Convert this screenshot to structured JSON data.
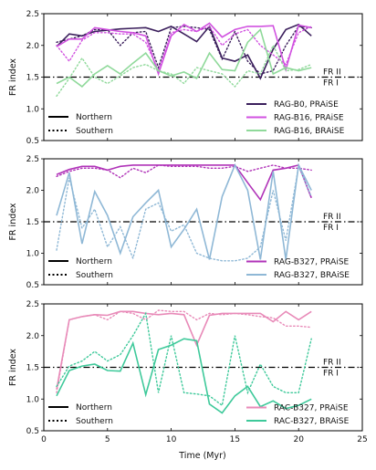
{
  "figure": {
    "xlabel": "Time (Myr)",
    "ylabel": "FR index",
    "fr_upper_label": "FR II",
    "fr_lower_label": "FR I",
    "style_legend": {
      "solid": "Northern",
      "dotted": "Southern"
    }
  },
  "chart_data": [
    {
      "type": "line",
      "xlim": [
        0,
        25
      ],
      "ylim": [
        0.5,
        2.5
      ],
      "xticks": [
        0,
        5,
        10,
        15,
        20,
        25
      ],
      "yticks": [
        0.5,
        1.0,
        1.5,
        2.0,
        2.5
      ],
      "threshold": 1.5,
      "show_style_legend": true,
      "series": [
        {
          "name": "RAG-B0, PRAiSE",
          "color": "#3b1f5c",
          "x": [
            1,
            2,
            3,
            4,
            5,
            6,
            7,
            8,
            9,
            10,
            11,
            12,
            13,
            14,
            15,
            16,
            17,
            18,
            19,
            20,
            21
          ],
          "north": [
            1.98,
            2.18,
            2.15,
            2.22,
            2.24,
            2.26,
            2.27,
            2.28,
            2.22,
            2.3,
            2.18,
            2.06,
            2.3,
            1.8,
            1.75,
            1.85,
            1.48,
            1.94,
            2.25,
            2.33,
            2.15
          ],
          "south": [
            2.05,
            2.1,
            2.15,
            2.25,
            2.25,
            2.0,
            2.2,
            2.22,
            1.65,
            2.28,
            2.3,
            2.28,
            2.25,
            1.78,
            2.22,
            1.75,
            1.55,
            1.6,
            2.0,
            2.3,
            2.28
          ]
        },
        {
          "name": "RAG-B16, PRAiSE",
          "color": "#d152e0",
          "x": [
            1,
            2,
            3,
            4,
            5,
            6,
            7,
            8,
            9,
            10,
            11,
            12,
            13,
            14,
            15,
            16,
            17,
            18,
            19,
            20,
            21
          ],
          "north": [
            1.98,
            2.1,
            2.1,
            2.28,
            2.25,
            2.22,
            2.2,
            2.15,
            1.55,
            2.15,
            2.33,
            2.22,
            2.35,
            2.13,
            2.25,
            2.3,
            2.3,
            2.31,
            1.62,
            2.32,
            2.28
          ],
          "south": [
            2.0,
            1.75,
            2.08,
            2.2,
            2.2,
            2.18,
            2.18,
            2.05,
            1.6,
            2.2,
            2.25,
            2.22,
            2.3,
            2.0,
            2.18,
            2.25,
            2.0,
            1.85,
            1.7,
            2.2,
            2.3
          ]
        },
        {
          "name": "RAG-B16, BRAiSE",
          "color": "#8fd99a",
          "x": [
            1,
            2,
            3,
            4,
            5,
            6,
            7,
            8,
            9,
            10,
            11,
            12,
            13,
            14,
            15,
            16,
            17,
            18,
            19,
            20,
            21
          ],
          "north": [
            1.4,
            1.5,
            1.35,
            1.55,
            1.68,
            1.55,
            1.72,
            1.88,
            1.6,
            1.52,
            1.58,
            1.48,
            1.88,
            1.62,
            1.6,
            2.05,
            2.25,
            1.55,
            1.65,
            1.6,
            1.65
          ],
          "south": [
            1.2,
            1.48,
            1.8,
            1.5,
            1.4,
            1.52,
            1.65,
            1.7,
            1.6,
            1.55,
            1.4,
            1.65,
            1.6,
            1.55,
            1.35,
            1.6,
            1.55,
            2.0,
            1.6,
            1.62,
            1.7
          ]
        }
      ]
    },
    {
      "type": "line",
      "xlim": [
        0,
        25
      ],
      "ylim": [
        0.5,
        2.5
      ],
      "xticks": [
        0,
        5,
        10,
        15,
        20,
        25
      ],
      "yticks": [
        0.5,
        1.0,
        1.5,
        2.0,
        2.5
      ],
      "threshold": 1.5,
      "show_style_legend": true,
      "series": [
        {
          "name": "RAG-B327, PRAiSE",
          "color": "#b033b8",
          "x": [
            1,
            2,
            3,
            4,
            5,
            6,
            7,
            8,
            9,
            10,
            11,
            12,
            13,
            14,
            15,
            16,
            17,
            18,
            19,
            20,
            21
          ],
          "north": [
            2.25,
            2.33,
            2.38,
            2.38,
            2.32,
            2.38,
            2.4,
            2.4,
            2.4,
            2.4,
            2.4,
            2.4,
            2.4,
            2.4,
            2.4,
            2.12,
            1.85,
            2.32,
            2.35,
            2.4,
            1.88
          ],
          "south": [
            2.22,
            2.3,
            2.35,
            2.35,
            2.32,
            2.2,
            2.35,
            2.28,
            2.4,
            2.38,
            2.38,
            2.38,
            2.35,
            2.35,
            2.38,
            2.3,
            2.35,
            2.4,
            2.35,
            2.35,
            2.32
          ]
        },
        {
          "name": "RAG-B327, BRAiSE",
          "color": "#8fb8d6",
          "x": [
            1,
            2,
            3,
            4,
            5,
            6,
            7,
            8,
            9,
            10,
            11,
            12,
            13,
            14,
            15,
            16,
            17,
            18,
            19,
            20,
            21
          ],
          "north": [
            1.6,
            2.28,
            1.15,
            1.98,
            1.6,
            1.0,
            1.58,
            1.8,
            2.0,
            1.1,
            1.38,
            1.7,
            0.9,
            1.9,
            2.4,
            2.0,
            0.9,
            2.3,
            0.9,
            2.4,
            2.0
          ],
          "south": [
            1.05,
            2.2,
            1.4,
            1.7,
            1.1,
            1.42,
            0.92,
            1.7,
            1.8,
            1.35,
            1.45,
            1.0,
            0.92,
            0.88,
            0.88,
            0.92,
            1.1,
            2.0,
            1.2,
            2.38,
            1.9
          ]
        }
      ]
    },
    {
      "type": "line",
      "xlim": [
        0,
        25
      ],
      "ylim": [
        0.5,
        2.5
      ],
      "xticks": [
        0,
        5,
        10,
        15,
        20,
        25
      ],
      "yticks": [
        0.5,
        1.0,
        1.5,
        2.0,
        2.5
      ],
      "threshold": 1.5,
      "show_style_legend": true,
      "xlabel_visible": true,
      "series": [
        {
          "name": "RAC-B327, PRAiSE",
          "color": "#e88ab8",
          "x": [
            1,
            2,
            3,
            4,
            5,
            6,
            7,
            8,
            9,
            10,
            11,
            12,
            13,
            14,
            15,
            16,
            17,
            18,
            19,
            20,
            21
          ],
          "north": [
            1.15,
            2.25,
            2.3,
            2.33,
            2.32,
            2.38,
            2.38,
            2.35,
            2.33,
            2.35,
            2.33,
            1.85,
            2.32,
            2.35,
            2.35,
            2.35,
            2.35,
            2.22,
            2.38,
            2.25,
            2.38
          ],
          "south": [
            1.1,
            2.25,
            2.3,
            2.33,
            2.25,
            2.38,
            2.35,
            2.25,
            2.4,
            2.38,
            2.38,
            2.25,
            2.35,
            2.33,
            2.35,
            2.33,
            2.3,
            2.28,
            2.15,
            2.15,
            2.13
          ]
        },
        {
          "name": "RAC-B327, BRAiSE",
          "color": "#3ec99a",
          "x": [
            1,
            2,
            3,
            4,
            5,
            6,
            7,
            8,
            9,
            10,
            11,
            12,
            13,
            14,
            15,
            16,
            17,
            18,
            19,
            20,
            21
          ],
          "north": [
            1.05,
            1.45,
            1.52,
            1.55,
            1.45,
            1.44,
            1.88,
            1.07,
            1.78,
            1.85,
            1.95,
            1.92,
            0.92,
            0.78,
            1.05,
            1.2,
            0.88,
            0.97,
            0.85,
            0.9,
            1.0
          ],
          "south": [
            1.2,
            1.52,
            1.6,
            1.75,
            1.6,
            1.7,
            2.0,
            2.35,
            1.1,
            2.0,
            1.1,
            1.08,
            1.05,
            0.9,
            2.0,
            1.1,
            1.55,
            1.2,
            1.1,
            1.1,
            1.95
          ]
        }
      ]
    }
  ]
}
